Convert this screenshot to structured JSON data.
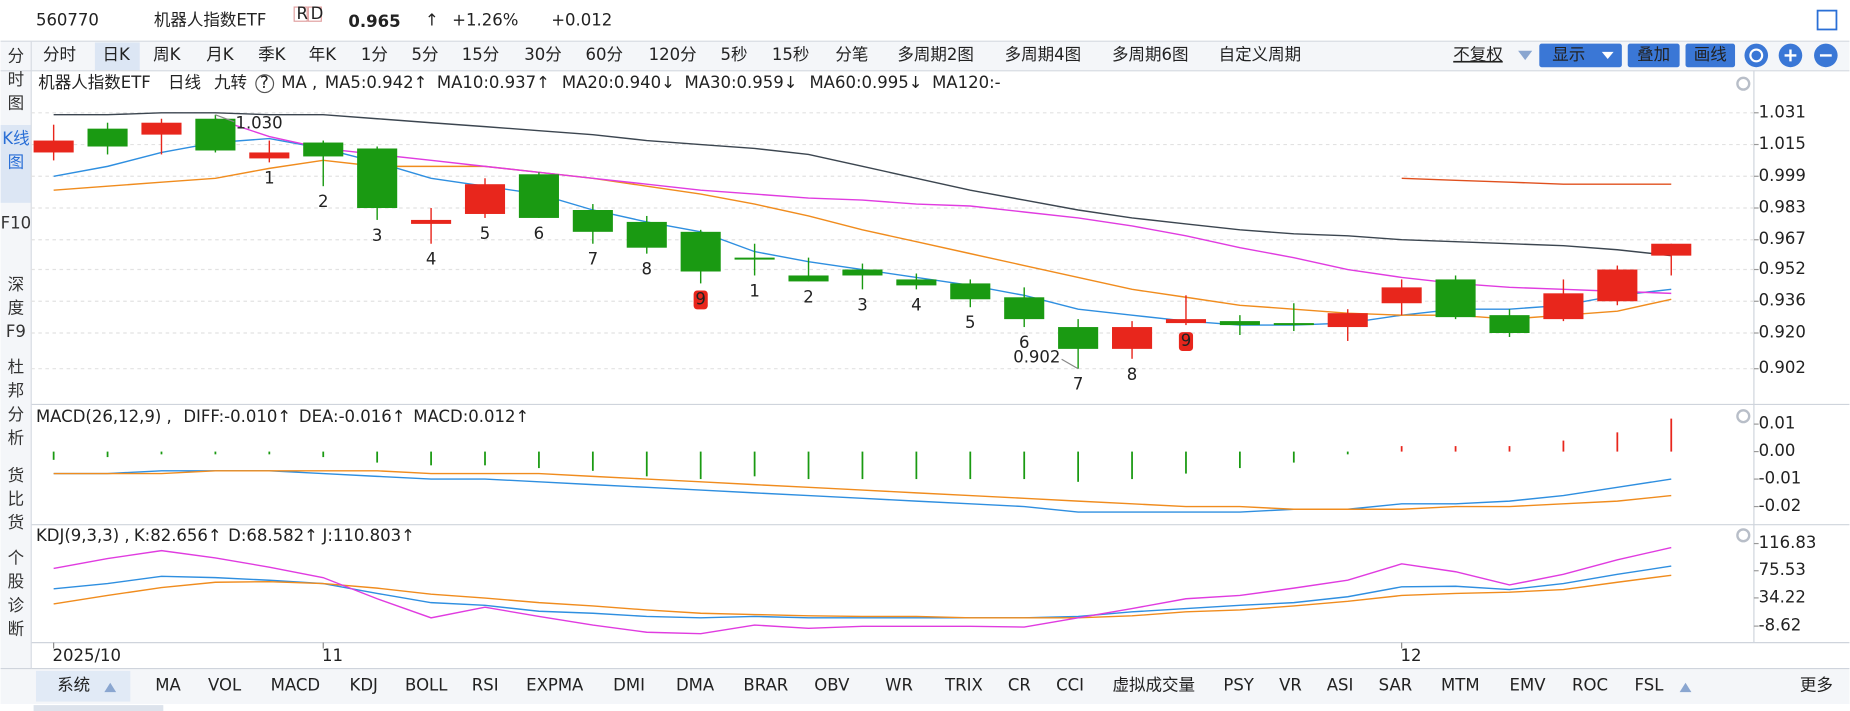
{
  "header": {
    "code": "560770",
    "name": "机器人指数ETF",
    "badges": [
      "R",
      "D"
    ],
    "price": "0.965",
    "price_arrow": "↑",
    "change_pct": "+1.26%",
    "change": "+0.012"
  },
  "period_tabs": [
    "分时",
    "日K",
    "周K",
    "月K",
    "季K",
    "年K",
    "1分",
    "5分",
    "15分",
    "30分",
    "60分",
    "120分",
    "5秒",
    "15秒",
    "分笔",
    "多周期2图",
    "多周期4图",
    "多周期6图",
    "自定义周期"
  ],
  "controls": {
    "adjust": "不复权",
    "show": "显示",
    "overlay": "叠加",
    "draw": "画线"
  },
  "sidebar": [
    "分时图",
    "K线图",
    "F10",
    "深度F9",
    "杜邦分析",
    "货比货",
    "个股诊断"
  ],
  "main_legend": [
    "机器人指数ETF",
    "日线",
    "九转",
    "?",
    "MA ,",
    "MA5:0.942↑",
    "MA10:0.937↑",
    "MA20:0.940↓",
    "MA30:0.959↓",
    "MA60:0.995↓",
    "MA120:-"
  ],
  "macd_legend": [
    "MACD(26,12,9) ,",
    "DIFF:-0.010↑",
    "DEA:-0.016↑",
    "MACD:0.012↑"
  ],
  "kdj_legend": [
    "KDJ(9,3,3) ,",
    "K:82.656↑",
    "D:68.582↑",
    "J:110.803↑"
  ],
  "indicator_tabs": [
    "系统",
    "MA",
    "VOL",
    "MACD",
    "KDJ",
    "BOLL",
    "RSI",
    "EXPMA",
    "DMI",
    "DMA",
    "BRAR",
    "OBV",
    "WR",
    "TRIX",
    "CR",
    "CCI",
    "虚拟成交量",
    "PSY",
    "VR",
    "ASI",
    "SAR",
    "MTM",
    "EMV",
    "ROC",
    "FSL",
    "更多"
  ],
  "kline": {
    "categories": [
      "2025/10",
      null,
      null,
      null,
      null,
      "11",
      null,
      null,
      null,
      null,
      null,
      null,
      null,
      null,
      null,
      null,
      null,
      null,
      null,
      null,
      null,
      null,
      null,
      null,
      null,
      "12",
      null,
      null,
      null,
      null,
      null
    ],
    "up_color": "#e8261c",
    "down_color": "#1a9a12",
    "candles": {
      "open": [
        1.011,
        1.023,
        1.02,
        1.028,
        1.008,
        1.016,
        1.013,
        0.975,
        0.98,
        1.0,
        0.982,
        0.976,
        0.971,
        0.958,
        0.949,
        0.952,
        0.947,
        0.945,
        0.938,
        0.923,
        0.912,
        0.925,
        0.926,
        0.925,
        0.923,
        0.935,
        0.947,
        0.929,
        0.927,
        0.936,
        0.959
      ],
      "high": [
        1.025,
        1.026,
        1.028,
        1.03,
        1.017,
        1.017,
        1.014,
        0.983,
        0.998,
        1.001,
        0.985,
        0.979,
        0.972,
        0.965,
        0.958,
        0.955,
        0.95,
        0.947,
        0.943,
        0.927,
        0.926,
        0.939,
        0.929,
        0.935,
        0.932,
        0.947,
        0.949,
        0.932,
        0.947,
        0.954,
        0.965
      ],
      "low": [
        1.007,
        1.01,
        1.01,
        1.011,
        1.006,
        0.994,
        0.977,
        0.965,
        0.978,
        0.978,
        0.965,
        0.96,
        0.945,
        0.949,
        0.946,
        0.942,
        0.942,
        0.933,
        0.923,
        0.902,
        0.907,
        0.924,
        0.919,
        0.921,
        0.916,
        0.929,
        0.927,
        0.918,
        0.926,
        0.934,
        0.949
      ],
      "close": [
        1.017,
        1.014,
        1.026,
        1.012,
        1.011,
        1.009,
        0.983,
        0.977,
        0.995,
        0.978,
        0.971,
        0.963,
        0.951,
        0.957,
        0.946,
        0.949,
        0.944,
        0.937,
        0.927,
        0.912,
        0.923,
        0.927,
        0.924,
        0.924,
        0.93,
        0.943,
        0.928,
        0.92,
        0.94,
        0.952,
        0.965
      ]
    },
    "ma": [
      {
        "name": "MA5",
        "color": "#2f8fe0",
        "values": [
          0.999,
          1.004,
          1.011,
          1.016,
          1.018,
          1.013,
          1.006,
          0.998,
          0.994,
          0.99,
          0.982,
          0.976,
          0.971,
          0.961,
          0.956,
          0.952,
          0.948,
          0.944,
          0.939,
          0.932,
          0.929,
          0.926,
          0.924,
          0.924,
          0.925,
          0.929,
          0.932,
          0.932,
          0.934,
          0.939,
          0.942
        ]
      },
      {
        "name": "MA10",
        "color": "#f08c1e",
        "values": [
          0.992,
          0.994,
          0.996,
          0.998,
          1.003,
          1.007,
          1.004,
          1.004,
          1.004,
          1.001,
          0.998,
          0.994,
          0.99,
          0.985,
          0.979,
          0.972,
          0.966,
          0.96,
          0.954,
          0.948,
          0.942,
          0.938,
          0.934,
          0.932,
          0.93,
          0.929,
          0.929,
          0.927,
          0.929,
          0.931,
          0.937
        ]
      },
      {
        "name": "MA20",
        "color": "#e03ce0",
        "values": [
          null,
          null,
          null,
          1.028,
          1.019,
          1.013,
          1.01,
          1.007,
          1.004,
          1.001,
          0.998,
          0.995,
          0.992,
          0.99,
          0.988,
          0.987,
          0.985,
          0.984,
          0.981,
          0.978,
          0.974,
          0.969,
          0.963,
          0.958,
          0.952,
          0.948,
          0.945,
          0.943,
          0.942,
          0.941,
          0.94
        ]
      },
      {
        "name": "MA30",
        "color": "#3c4650",
        "values": [
          1.03,
          1.03,
          1.031,
          1.031,
          1.03,
          1.03,
          1.028,
          1.026,
          1.024,
          1.022,
          1.02,
          1.017,
          1.015,
          1.013,
          1.01,
          1.004,
          0.998,
          0.992,
          0.987,
          0.982,
          0.978,
          0.975,
          0.972,
          0.97,
          0.969,
          0.967,
          0.966,
          0.965,
          0.964,
          0.962,
          0.959
        ]
      },
      {
        "name": "MA60",
        "color": "#e0501e",
        "values": [
          null,
          null,
          null,
          null,
          null,
          null,
          null,
          null,
          null,
          null,
          null,
          null,
          null,
          null,
          null,
          null,
          null,
          null,
          null,
          null,
          null,
          null,
          null,
          null,
          null,
          0.998,
          0.997,
          0.996,
          0.995,
          0.995,
          0.995
        ]
      }
    ],
    "td_labels": [
      null,
      null,
      null,
      null,
      "1",
      "2",
      "3",
      "4",
      "5",
      "6",
      "7",
      "8",
      "9",
      "1",
      "2",
      "3",
      "4",
      "5",
      "6",
      "7",
      "8",
      "9",
      null,
      null,
      null,
      null,
      null,
      null,
      null,
      null,
      null
    ],
    "high_mark": {
      "value": 1.03,
      "label": "1.030"
    },
    "low_mark": {
      "value": 0.902,
      "label": "0.902"
    },
    "ylim": [
      0.884,
      1.051
    ],
    "yticks": [
      1.031,
      1.015,
      0.999,
      0.983,
      0.967,
      0.952,
      0.936,
      {
        "value": 0.92,
        "label": "0.920"
      },
      0.902
    ],
    "grid": true
  },
  "macd": {
    "ylim": [
      -0.0266,
      0.0163
    ],
    "yticks": [
      0.01,
      {
        "value": 0,
        "label": "0.00"
      },
      -0.01,
      -0.02
    ],
    "hist": [
      -0.003,
      -0.002,
      -0.001,
      -0.001,
      -0.001,
      -0.002,
      -0.004,
      -0.005,
      -0.005,
      -0.006,
      -0.007,
      -0.009,
      -0.01,
      -0.009,
      -0.01,
      -0.01,
      -0.01,
      -0.01,
      -0.01,
      -0.011,
      -0.01,
      -0.008,
      -0.006,
      -0.004,
      -0.001,
      0.002,
      0.002,
      0.002,
      0.004,
      0.007,
      0.012
    ],
    "series": [
      {
        "name": "DIFF",
        "color": "#2f8fe0",
        "values": [
          -0.008,
          -0.008,
          -0.007,
          -0.007,
          -0.007,
          -0.008,
          -0.009,
          -0.01,
          -0.01,
          -0.011,
          -0.012,
          -0.013,
          -0.014,
          -0.015,
          -0.016,
          -0.017,
          -0.018,
          -0.019,
          -0.02,
          -0.022,
          -0.022,
          -0.022,
          -0.022,
          -0.021,
          -0.021,
          -0.019,
          -0.019,
          -0.018,
          -0.016,
          -0.013,
          -0.01
        ]
      },
      {
        "name": "DEA",
        "color": "#f08c1e",
        "values": [
          -0.008,
          -0.008,
          -0.008,
          -0.007,
          -0.007,
          -0.007,
          -0.007,
          -0.008,
          -0.008,
          -0.008,
          -0.009,
          -0.01,
          -0.011,
          -0.012,
          -0.013,
          -0.014,
          -0.015,
          -0.016,
          -0.017,
          -0.018,
          -0.019,
          -0.02,
          -0.02,
          -0.021,
          -0.021,
          -0.021,
          -0.02,
          -0.02,
          -0.019,
          -0.018,
          -0.016
        ]
      }
    ]
  },
  "kdj": {
    "ylim": [
      -33.7,
      141.9
    ],
    "yticks": [
      116.83,
      75.53,
      34.22,
      -8.62
    ],
    "series": [
      {
        "name": "K",
        "color": "#2f8fe0",
        "values": [
          48,
          56,
          67,
          65,
          61,
          56,
          41,
          27,
          23,
          14,
          11,
          6,
          4,
          6,
          4,
          4,
          4,
          4,
          4,
          6,
          13,
          18,
          23,
          27,
          36,
          51,
          52,
          47,
          56,
          70,
          82.656
        ]
      },
      {
        "name": "D",
        "color": "#f08c1e",
        "values": [
          25,
          38,
          50,
          58,
          59,
          56,
          49,
          40,
          34,
          27,
          22,
          16,
          11,
          9,
          7,
          6,
          6,
          4,
          4,
          4,
          7,
          13,
          16,
          22,
          29,
          38,
          41,
          43,
          47,
          58,
          68.582
        ]
      },
      {
        "name": "J",
        "color": "#e03ce0",
        "values": [
          79,
          94,
          106,
          95,
          81,
          65,
          33,
          4,
          20,
          6,
          -7,
          -18,
          -20,
          -7,
          -12,
          -9,
          -9,
          -9,
          -10,
          4,
          18,
          33,
          38,
          49,
          61,
          86,
          74,
          54,
          70,
          92,
          110.803
        ]
      }
    ]
  }
}
